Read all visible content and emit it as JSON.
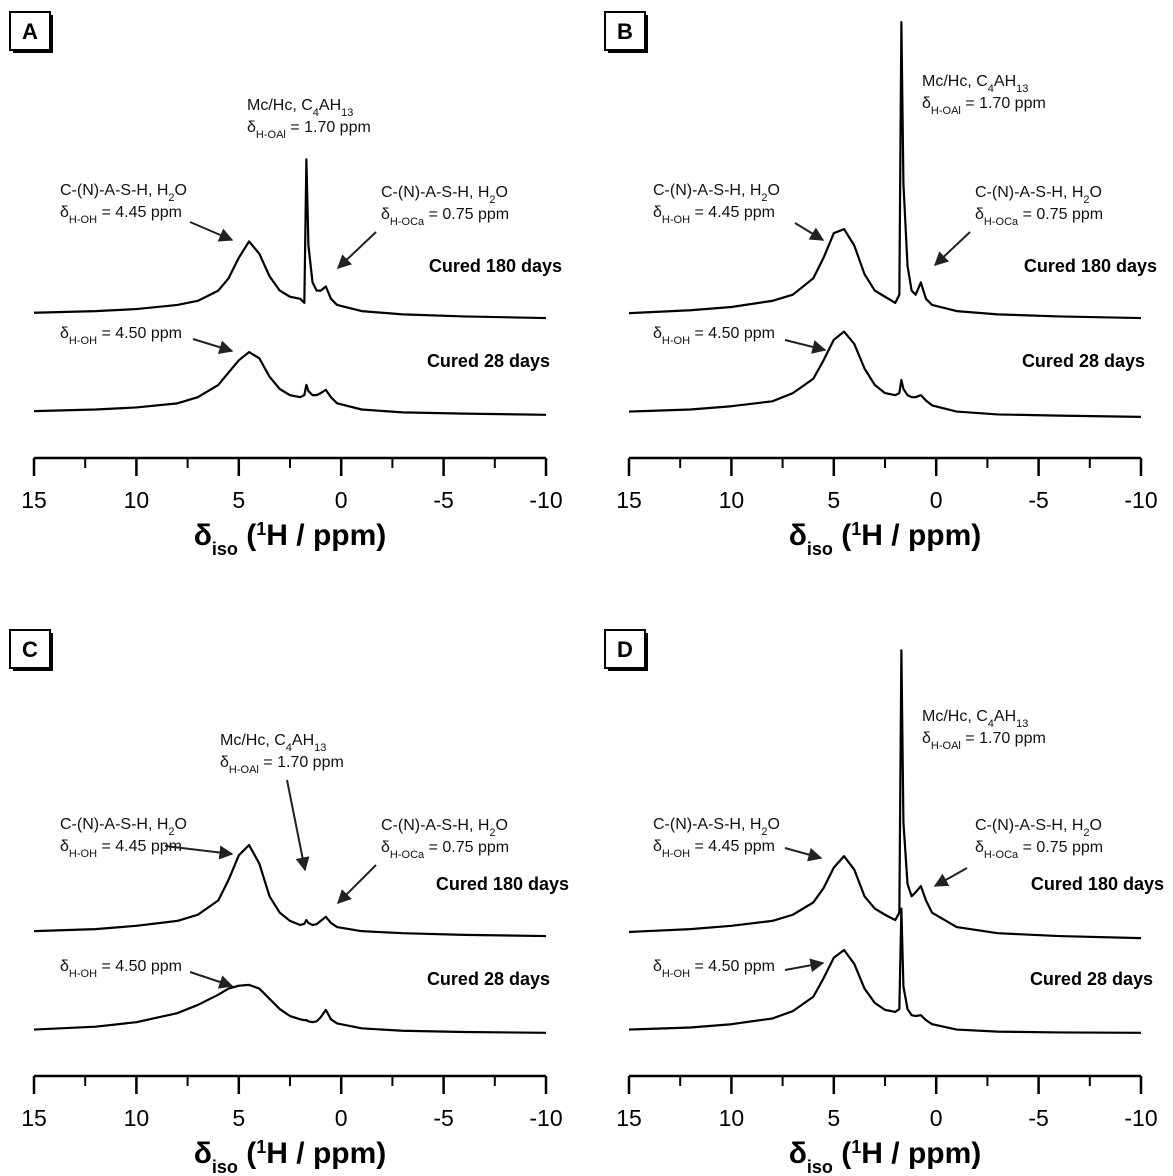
{
  "chart_data": [
    {
      "type": "line",
      "label": "A",
      "xlim": [
        15,
        -10
      ],
      "ylim": [
        0,
        100
      ],
      "xticks": [
        15,
        10,
        5,
        0,
        -5,
        -10
      ],
      "xminorticks": [
        12.5,
        7.5,
        2.5,
        -2.5,
        -7.5
      ],
      "xlabel": [
        {
          "text": "δ"
        },
        {
          "sub": "iso"
        },
        {
          "text": " ("
        },
        {
          "sup": "1"
        },
        {
          "text": "H / ppm)"
        }
      ],
      "x": [
        15,
        12,
        10,
        8,
        7,
        6,
        5.5,
        5,
        4.5,
        4,
        3.5,
        3,
        2.5,
        2,
        1.8,
        1.7,
        1.6,
        1.4,
        1.2,
        1,
        0.75,
        0.5,
        0.2,
        -1,
        -3,
        -6,
        -10
      ],
      "series": [
        {
          "name": "Cured 180 days",
          "color": "#000000",
          "values": [
            28.6,
            29,
            29.5,
            30.5,
            31.5,
            34,
            37,
            42,
            46,
            43,
            37.5,
            34,
            32.5,
            32,
            31,
            66,
            45,
            36,
            34,
            34,
            35,
            32,
            30.5,
            29,
            28.2,
            27.7,
            27.3
          ]
        },
        {
          "name": "Cured 28 days",
          "color": "#000000",
          "values": [
            4.6,
            5,
            5.5,
            6.5,
            8,
            11,
            14,
            17,
            19,
            17.5,
            13,
            10,
            8.5,
            8,
            8.5,
            11,
            9.5,
            8.5,
            8.5,
            9,
            9.8,
            8,
            6.5,
            5,
            4.3,
            4,
            3.7
          ]
        }
      ],
      "annotations": [
        {
          "lines": [
            [
              {
                "text": "Mc/Hc, C"
              },
              {
                "sub": "4"
              },
              {
                "text": "AH"
              },
              {
                "sub": "13"
              }
            ],
            [
              {
                "text": "δ"
              },
              {
                "sub": "H-OAl"
              },
              {
                "text": " = 1.70 ppm"
              }
            ]
          ]
        },
        {
          "lines": [
            [
              {
                "text": "C-(N)-A-S-H, H"
              },
              {
                "sub": "2"
              },
              {
                "text": "O"
              }
            ],
            [
              {
                "text": "δ"
              },
              {
                "sub": "H-OH"
              },
              {
                "text": " = 4.45 ppm"
              }
            ]
          ]
        },
        {
          "lines": [
            [
              {
                "text": "C-(N)-A-S-H, H"
              },
              {
                "sub": "2"
              },
              {
                "text": "O"
              }
            ],
            [
              {
                "text": "δ"
              },
              {
                "sub": "H-OCa"
              },
              {
                "text": " = 0.75 ppm"
              }
            ]
          ]
        },
        {
          "lines": [
            [
              {
                "text": "δ"
              },
              {
                "sub": "H-OH"
              },
              {
                "text": " = 4.50 ppm"
              }
            ]
          ]
        }
      ]
    },
    {
      "type": "line",
      "label": "B",
      "xlim": [
        15,
        -10
      ],
      "ylim": [
        0,
        100
      ],
      "xticks": [
        15,
        10,
        5,
        0,
        -5,
        -10
      ],
      "xminorticks": [
        12.5,
        7.5,
        2.5,
        -2.5,
        -7.5
      ],
      "xlabel": [
        {
          "text": "δ"
        },
        {
          "sub": "iso"
        },
        {
          "text": " ("
        },
        {
          "sup": "1"
        },
        {
          "text": "H / ppm)"
        }
      ],
      "x": [
        15,
        12,
        10,
        8,
        7,
        6,
        5.5,
        5,
        4.5,
        4,
        3.5,
        3,
        2.5,
        2,
        1.8,
        1.7,
        1.6,
        1.4,
        1.2,
        1,
        0.75,
        0.5,
        0.2,
        -1,
        -3,
        -6,
        -10
      ],
      "series": [
        {
          "name": "Cured 180 days",
          "color": "#000000",
          "values": [
            28.5,
            29.2,
            30,
            31.5,
            33,
            37,
            42,
            48,
            49,
            45,
            38,
            34,
            32.5,
            31,
            33,
            99.5,
            60,
            40,
            34,
            33,
            36,
            32,
            30.5,
            29,
            28.2,
            27.7,
            27.3
          ]
        },
        {
          "name": "Cured 28 days",
          "color": "#000000",
          "values": [
            4.5,
            5,
            5.8,
            7,
            9,
            12.5,
            17,
            22,
            24,
            21,
            15,
            11,
            9,
            8.5,
            9,
            12.2,
            10,
            8.5,
            8,
            8,
            8.5,
            7.2,
            6,
            4.5,
            3.8,
            3.5,
            3.2
          ]
        }
      ],
      "annotations": [
        {
          "lines": [
            [
              {
                "text": "Mc/Hc, C"
              },
              {
                "sub": "4"
              },
              {
                "text": "AH"
              },
              {
                "sub": "13"
              }
            ],
            [
              {
                "text": "δ"
              },
              {
                "sub": "H-OAl"
              },
              {
                "text": " = 1.70 ppm"
              }
            ]
          ]
        },
        {
          "lines": [
            [
              {
                "text": "C-(N)-A-S-H, H"
              },
              {
                "sub": "2"
              },
              {
                "text": "O"
              }
            ],
            [
              {
                "text": "δ"
              },
              {
                "sub": "H-OH"
              },
              {
                "text": " = 4.45 ppm"
              }
            ]
          ]
        },
        {
          "lines": [
            [
              {
                "text": "C-(N)-A-S-H, H"
              },
              {
                "sub": "2"
              },
              {
                "text": "O"
              }
            ],
            [
              {
                "text": "δ"
              },
              {
                "sub": "H-OCa"
              },
              {
                "text": " = 0.75 ppm"
              }
            ]
          ]
        },
        {
          "lines": [
            [
              {
                "text": "δ"
              },
              {
                "sub": "H-OH"
              },
              {
                "text": " = 4.50 ppm"
              }
            ]
          ]
        }
      ]
    },
    {
      "type": "line",
      "label": "C",
      "xlim": [
        15,
        -10
      ],
      "ylim": [
        0,
        100
      ],
      "xticks": [
        15,
        10,
        5,
        0,
        -5,
        -10
      ],
      "xminorticks": [
        12.5,
        7.5,
        2.5,
        -2.5,
        -7.5
      ],
      "xlabel": [
        {
          "text": "δ"
        },
        {
          "sub": "iso"
        },
        {
          "text": " ("
        },
        {
          "sup": "1"
        },
        {
          "text": "H / ppm)"
        }
      ],
      "x": [
        15,
        12,
        10,
        8,
        7,
        6,
        5.5,
        5,
        4.5,
        4,
        3.5,
        3,
        2.5,
        2,
        1.8,
        1.7,
        1.6,
        1.4,
        1.2,
        1,
        0.75,
        0.5,
        0.2,
        -1,
        -3,
        -6,
        -10
      ],
      "series": [
        {
          "name": "Cured 180 days",
          "color": "#000000",
          "values": [
            28.5,
            29,
            29.8,
            31,
            32.5,
            36,
            41,
            47,
            49.5,
            45,
            37,
            33,
            31,
            30,
            30.3,
            31.2,
            30.5,
            30,
            30.2,
            31,
            32,
            30.5,
            29.5,
            28.5,
            28,
            27.6,
            27.3
          ]
        },
        {
          "name": "Cured 28 days",
          "color": "#000000",
          "values": [
            4.5,
            5.2,
            6.3,
            8.5,
            10.5,
            13,
            14.5,
            15.2,
            15.4,
            14.5,
            12,
            9.5,
            7.8,
            7,
            6.8,
            6.8,
            6.5,
            6.3,
            6.5,
            7.5,
            9.3,
            7,
            6,
            4.8,
            4.2,
            3.9,
            3.7
          ]
        }
      ],
      "annotations": [
        {
          "lines": [
            [
              {
                "text": "Mc/Hc, C"
              },
              {
                "sub": "4"
              },
              {
                "text": "AH"
              },
              {
                "sub": "13"
              }
            ],
            [
              {
                "text": "δ"
              },
              {
                "sub": "H-OAl"
              },
              {
                "text": " = 1.70 ppm"
              }
            ]
          ]
        },
        {
          "lines": [
            [
              {
                "text": "C-(N)-A-S-H, H"
              },
              {
                "sub": "2"
              },
              {
                "text": "O"
              }
            ],
            [
              {
                "text": "δ"
              },
              {
                "sub": "H-OH"
              },
              {
                "text": " = 4.45 ppm"
              }
            ]
          ]
        },
        {
          "lines": [
            [
              {
                "text": "C-(N)-A-S-H, H"
              },
              {
                "sub": "2"
              },
              {
                "text": "O"
              }
            ],
            [
              {
                "text": "δ"
              },
              {
                "sub": "H-OCa"
              },
              {
                "text": " = 0.75 ppm"
              }
            ]
          ]
        },
        {
          "lines": [
            [
              {
                "text": "δ"
              },
              {
                "sub": "H-OH"
              },
              {
                "text": " = 4.50 ppm"
              }
            ]
          ]
        }
      ]
    },
    {
      "type": "line",
      "label": "D",
      "xlim": [
        15,
        -10
      ],
      "ylim": [
        0,
        100
      ],
      "xticks": [
        15,
        10,
        5,
        0,
        -5,
        -10
      ],
      "xminorticks": [
        12.5,
        7.5,
        2.5,
        -2.5,
        -7.5
      ],
      "xlabel": [
        {
          "text": "δ"
        },
        {
          "sub": "iso"
        },
        {
          "text": " ("
        },
        {
          "sup": "1"
        },
        {
          "text": "H / ppm)"
        }
      ],
      "x": [
        15,
        12,
        10,
        8,
        7,
        6,
        5.5,
        5,
        4.5,
        4,
        3.5,
        3,
        2.5,
        2,
        1.8,
        1.7,
        1.6,
        1.4,
        1.2,
        1,
        0.75,
        0.5,
        0.2,
        -1,
        -3,
        -6,
        -10
      ],
      "series": [
        {
          "name": "Cured 180 days",
          "color": "#000000",
          "values": [
            28.3,
            29,
            29.8,
            31,
            32.5,
            35.5,
            39,
            44,
            46.8,
            43.5,
            37,
            34,
            32.5,
            31.2,
            33,
            97,
            55,
            40,
            37,
            38,
            39.5,
            36,
            33,
            29.5,
            28,
            27.3,
            26.8
          ]
        },
        {
          "name": "Cured 28 days",
          "color": "#000000",
          "values": [
            4.5,
            5,
            5.8,
            7.2,
            9,
            12.5,
            17,
            22,
            23.9,
            20.5,
            14.5,
            11,
            9.3,
            8.8,
            9.5,
            34,
            15,
            9.5,
            8,
            7.8,
            8,
            6.8,
            5.8,
            4.5,
            4,
            3.8,
            3.7
          ]
        }
      ],
      "annotations": [
        {
          "lines": [
            [
              {
                "text": "Mc/Hc, C"
              },
              {
                "sub": "4"
              },
              {
                "text": "AH"
              },
              {
                "sub": "13"
              }
            ],
            [
              {
                "text": "δ"
              },
              {
                "sub": "H-OAl"
              },
              {
                "text": " = 1.70 ppm"
              }
            ]
          ]
        },
        {
          "lines": [
            [
              {
                "text": "C-(N)-A-S-H, H"
              },
              {
                "sub": "2"
              },
              {
                "text": "O"
              }
            ],
            [
              {
                "text": "δ"
              },
              {
                "sub": "H-OH"
              },
              {
                "text": " = 4.45 ppm"
              }
            ]
          ]
        },
        {
          "lines": [
            [
              {
                "text": "C-(N)-A-S-H, H"
              },
              {
                "sub": "2"
              },
              {
                "text": "O"
              }
            ],
            [
              {
                "text": "δ"
              },
              {
                "sub": "H-OCa"
              },
              {
                "text": " = 0.75 ppm"
              }
            ]
          ]
        },
        {
          "lines": [
            [
              {
                "text": "δ"
              },
              {
                "sub": "H-OH"
              },
              {
                "text": " = 4.50 ppm"
              }
            ]
          ]
        }
      ]
    }
  ]
}
